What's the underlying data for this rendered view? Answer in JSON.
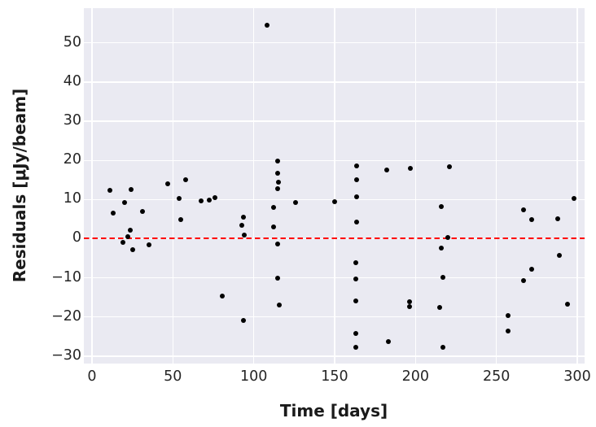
{
  "figure": {
    "background": "#ffffff",
    "plot_background": "#eaeaf2",
    "grid_color": "#ffffff",
    "text_color": "#262626",
    "marker_color": "#000000",
    "reference_line_color": "#ff0000"
  },
  "chart_data": {
    "type": "scatter",
    "title": "",
    "xlabel": "Time [days]",
    "ylabel": "Residuals [μJy/beam]",
    "xlim": [
      -5.03,
      304.53
    ],
    "ylim": [
      -31.9,
      58.9
    ],
    "xticks": [
      0,
      50,
      100,
      150,
      200,
      250,
      300
    ],
    "yticks": [
      -30,
      -20,
      -10,
      0,
      10,
      20,
      30,
      40,
      50
    ],
    "grid": true,
    "legend": false,
    "reference_line": {
      "y": 0,
      "style": "dashed",
      "color": "#ff0000"
    },
    "series": [
      {
        "name": "residuals",
        "marker": "point",
        "color": "#000000",
        "points": [
          [
            11,
            12.3
          ],
          [
            13,
            6.5
          ],
          [
            19,
            -1.0
          ],
          [
            20,
            9.2
          ],
          [
            22,
            0.6
          ],
          [
            23.5,
            2.1
          ],
          [
            24,
            12.5
          ],
          [
            25,
            -2.9
          ],
          [
            31,
            7.0
          ],
          [
            35,
            -1.5
          ],
          [
            47,
            14.0
          ],
          [
            54,
            10.2
          ],
          [
            55,
            4.8
          ],
          [
            58,
            15.0
          ],
          [
            67.5,
            9.6
          ],
          [
            72.5,
            9.9
          ],
          [
            76,
            10.4
          ],
          [
            80.5,
            -14.6
          ],
          [
            92.5,
            3.5
          ],
          [
            93.5,
            5.4
          ],
          [
            93.5,
            -20.8
          ],
          [
            94,
            0.9
          ],
          [
            108,
            54.5
          ],
          [
            112,
            7.9
          ],
          [
            112,
            3.1
          ],
          [
            115,
            19.8
          ],
          [
            115,
            16.7
          ],
          [
            115.5,
            14.4
          ],
          [
            115,
            12.7
          ],
          [
            115,
            -1.3
          ],
          [
            115,
            -10.0
          ],
          [
            116,
            -16.9
          ],
          [
            126,
            9.3
          ],
          [
            150,
            9.4
          ],
          [
            163.5,
            18.5
          ],
          [
            163.5,
            15.0
          ],
          [
            163.5,
            10.6
          ],
          [
            163.5,
            4.2
          ],
          [
            163,
            -6.2
          ],
          [
            163,
            -10.2
          ],
          [
            163,
            -15.8
          ],
          [
            163,
            -24.2
          ],
          [
            163,
            -27.7
          ],
          [
            182,
            17.5
          ],
          [
            183,
            -26.2
          ],
          [
            197,
            18.0
          ],
          [
            196.5,
            -16.2
          ],
          [
            196.5,
            -17.3
          ],
          [
            215,
            -17.5
          ],
          [
            216,
            8.3
          ],
          [
            216,
            -2.3
          ],
          [
            217,
            -9.8
          ],
          [
            217,
            -27.7
          ],
          [
            220,
            0.4
          ],
          [
            221,
            18.3
          ],
          [
            257,
            -19.6
          ],
          [
            257,
            -23.5
          ],
          [
            267,
            7.3
          ],
          [
            267,
            -10.8
          ],
          [
            272,
            4.8
          ],
          [
            272,
            -7.9
          ],
          [
            288,
            5.0
          ],
          [
            289,
            -4.2
          ],
          [
            294,
            -16.7
          ],
          [
            298,
            10.2
          ]
        ]
      }
    ]
  }
}
